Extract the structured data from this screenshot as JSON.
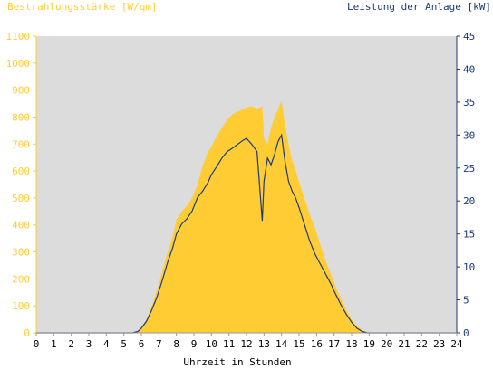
{
  "colors": {
    "plot_background": "#dcdcdc",
    "irradiance": "#ffcc33",
    "power": "#1a3a7a",
    "axis_x_text": "#000000"
  },
  "chart_data": {
    "type": "area",
    "title_left": "Bestrahlungsstärke [W/qm]",
    "title_right": "Leistung der Anlage [kW]",
    "xlabel": "Uhrzeit in Stunden",
    "x_ticks": [
      "0",
      "1",
      "2",
      "3",
      "4",
      "5",
      "6",
      "7",
      "8",
      "9",
      "10",
      "11",
      "12",
      "13",
      "14",
      "15",
      "16",
      "17",
      "18",
      "19",
      "20",
      "21",
      "22",
      "23",
      "24"
    ],
    "y_left_ticks": [
      "0",
      "100",
      "200",
      "300",
      "400",
      "500",
      "600",
      "700",
      "800",
      "900",
      "1000",
      "1100"
    ],
    "y_right_ticks": [
      "0",
      "5",
      "10",
      "15",
      "20",
      "25",
      "30",
      "35",
      "40",
      "45"
    ],
    "xlim": [
      0,
      24
    ],
    "ylim_left": [
      0,
      1100
    ],
    "ylim_right": [
      0,
      45
    ],
    "grid": false,
    "series": [
      {
        "name": "Bestrahlungsstärke [W/qm]",
        "axis": "left",
        "style": "filled-area",
        "x": [
          0,
          5.5,
          5.8,
          6.0,
          6.3,
          6.6,
          6.9,
          7.2,
          7.5,
          7.8,
          8.0,
          8.3,
          8.6,
          8.9,
          9.2,
          9.5,
          9.8,
          10.0,
          10.3,
          10.6,
          10.9,
          11.2,
          11.5,
          11.8,
          12.0,
          12.3,
          12.6,
          12.9,
          13.0,
          13.2,
          13.4,
          13.6,
          13.8,
          14.0,
          14.2,
          14.4,
          14.6,
          14.8,
          15.0,
          15.3,
          15.6,
          15.9,
          16.2,
          16.5,
          16.8,
          17.1,
          17.4,
          17.7,
          18.0,
          18.3,
          18.6,
          18.9,
          19.1,
          19.3,
          24
        ],
        "y": [
          0,
          0,
          5,
          20,
          50,
          100,
          160,
          230,
          300,
          360,
          420,
          450,
          470,
          500,
          550,
          620,
          670,
          690,
          730,
          760,
          790,
          810,
          820,
          830,
          835,
          840,
          830,
          840,
          720,
          700,
          760,
          800,
          830,
          860,
          770,
          700,
          640,
          600,
          560,
          500,
          440,
          390,
          330,
          270,
          220,
          170,
          125,
          85,
          50,
          25,
          10,
          3,
          0,
          0,
          0
        ]
      },
      {
        "name": "Leistung der Anlage [kW]",
        "axis": "right",
        "style": "line",
        "x": [
          0,
          5.5,
          5.8,
          6.0,
          6.3,
          6.6,
          6.9,
          7.2,
          7.5,
          7.8,
          8.0,
          8.3,
          8.6,
          8.9,
          9.2,
          9.5,
          9.8,
          10.0,
          10.3,
          10.6,
          10.9,
          11.2,
          11.5,
          11.8,
          12.0,
          12.3,
          12.6,
          12.9,
          13.0,
          13.2,
          13.4,
          13.6,
          13.8,
          14.0,
          14.2,
          14.4,
          14.6,
          14.8,
          15.0,
          15.3,
          15.6,
          15.9,
          16.2,
          16.5,
          16.8,
          17.1,
          17.4,
          17.7,
          18.0,
          18.3,
          18.6,
          18.9,
          19.1,
          19.3,
          24
        ],
        "y": [
          0,
          0,
          0.2,
          0.7,
          1.8,
          3.5,
          5.5,
          8.0,
          10.7,
          13.0,
          15.0,
          16.5,
          17.3,
          18.5,
          20.5,
          21.5,
          22.8,
          24.0,
          25.2,
          26.5,
          27.5,
          28.0,
          28.6,
          29.2,
          29.5,
          28.6,
          27.5,
          17.0,
          23.0,
          26.5,
          25.5,
          27.0,
          29.0,
          30.0,
          26.0,
          23.0,
          21.5,
          20.5,
          19.0,
          16.5,
          14.0,
          12.0,
          10.5,
          9.0,
          7.5,
          5.8,
          4.2,
          2.8,
          1.6,
          0.7,
          0.2,
          0,
          0,
          0,
          0
        ]
      }
    ]
  }
}
